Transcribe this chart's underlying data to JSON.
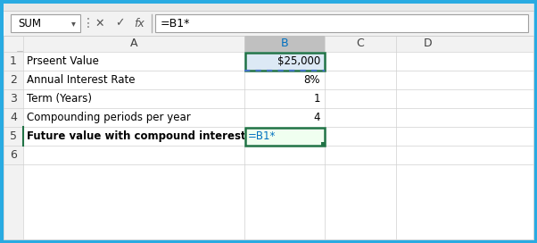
{
  "outer_border_color": "#29abe2",
  "grid_color": "#d0d0d0",
  "formula_blue": "#0070c0",
  "green_border": "#217346",
  "col_A_data": [
    "Prseent Value",
    "Annual Interest Rate",
    "Term (Years)",
    "Compounding periods per year",
    "Future value with compound interest",
    ""
  ],
  "col_B_data": [
    "$25,000",
    "8%",
    "1",
    "4",
    "=B1*",
    ""
  ],
  "col_A_bold": [
    false,
    false,
    false,
    false,
    true,
    false
  ],
  "formula_bar_text": "=B1*",
  "name_box_text": "SUM",
  "fig_bg": "#cce8f4",
  "toolbar_bg": "#f2f2f2",
  "row_header_bg": "#f2f2f2",
  "col_B_header_sel_bg": "#c0c0c0",
  "b1_fill": "#dce9f5",
  "b5_fill": "#ffffff",
  "toolbar_strip_bg": "#e8e8e8"
}
